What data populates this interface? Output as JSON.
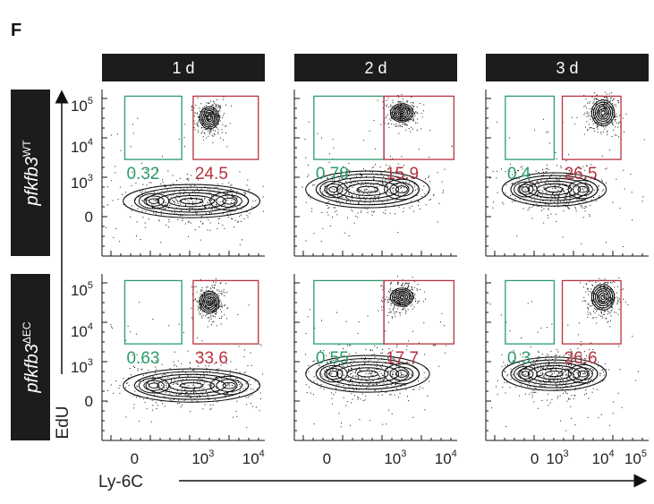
{
  "figure": {
    "panel_letter": "F",
    "x_axis_title": "Ly-6C",
    "y_axis_title": "EdU",
    "columns": [
      "1 d",
      "2 d",
      "3 d"
    ],
    "rows": [
      {
        "gene": "pfkfb3",
        "sup": "WT"
      },
      {
        "gene": "pfkfb3",
        "sup": "ΔEC"
      }
    ],
    "y_ticks": [
      {
        "base": "10",
        "exp": "5"
      },
      {
        "base": "10",
        "exp": "4"
      },
      {
        "base": "10",
        "exp": "3"
      },
      {
        "base": "0",
        "exp": ""
      }
    ],
    "x_ticks_by_column": [
      [
        {
          "base": "0",
          "exp": ""
        },
        {
          "base": "10",
          "exp": "3"
        },
        {
          "base": "10",
          "exp": "4"
        }
      ],
      [
        {
          "base": "0",
          "exp": ""
        },
        {
          "base": "10",
          "exp": "3"
        },
        {
          "base": "10",
          "exp": "4"
        }
      ],
      [
        {
          "base": "0",
          "exp": ""
        },
        {
          "base": "10",
          "exp": "3"
        },
        {
          "base": "10",
          "exp": "4"
        },
        {
          "base": "10",
          "exp": "5"
        }
      ]
    ],
    "colors": {
      "left_gate": "#2a9d6a",
      "right_gate": "#b8323f",
      "header_bg": "#1c1c1c",
      "contour": "#111111"
    }
  },
  "chart_data": {
    "type": "flow-cytometry-contour-grid",
    "x_variable": "Ly-6C",
    "y_variable": "EdU",
    "scale": "biexponential",
    "panels": [
      {
        "row": 0,
        "column": 0,
        "left_gate_pct": "0.32",
        "right_gate_pct": "24.5"
      },
      {
        "row": 0,
        "column": 1,
        "left_gate_pct": "0.78",
        "right_gate_pct": "15.9"
      },
      {
        "row": 0,
        "column": 2,
        "left_gate_pct": "0.4",
        "right_gate_pct": "26.5"
      },
      {
        "row": 1,
        "column": 0,
        "left_gate_pct": "0.63",
        "right_gate_pct": "33.6"
      },
      {
        "row": 1,
        "column": 1,
        "left_gate_pct": "0.55",
        "right_gate_pct": "17.7"
      },
      {
        "row": 1,
        "column": 2,
        "left_gate_pct": "0.3",
        "right_gate_pct": "26.6"
      }
    ]
  }
}
